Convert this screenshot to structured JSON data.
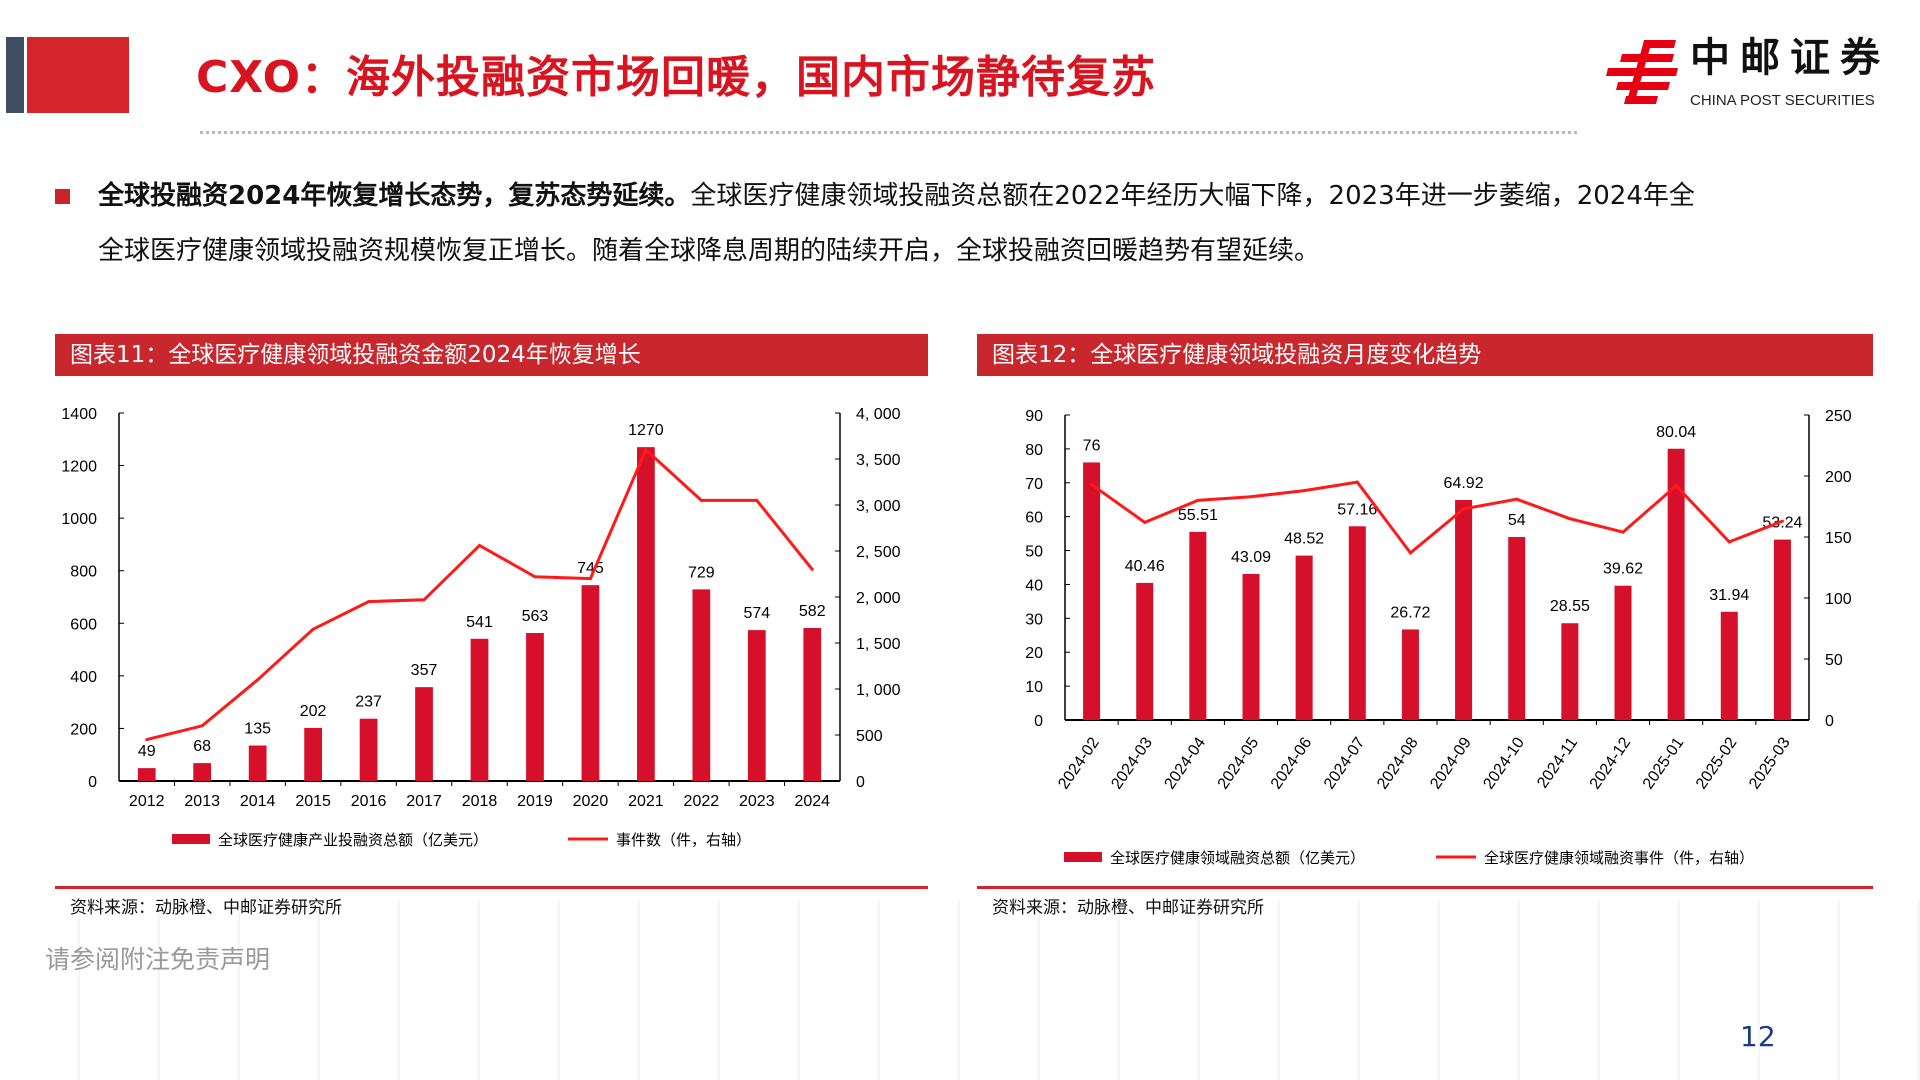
{
  "header": {
    "title": "CXO：海外投融资市场回暖，国内市场静待复苏",
    "logo_cn": "中邮证券",
    "logo_en": "CHINA POST SECURITIES"
  },
  "body": {
    "bold": "全球投融资2024年恢复增长态势，复苏态势延续。",
    "line1_rest": "全球医疗健康领域投融资总额在2022年经历大幅下降，2023年进一步萎缩，2024年全",
    "line2": "全球医疗健康领域投融资规模恢复正增长。随着全球降息周期的陆续开启，全球投融资回暖趋势有望延续。"
  },
  "charts": [
    {
      "header": "图表11：全球医疗健康领域投融资金额2024年恢复增长",
      "source": "资料来源：动脉橙、中邮证券研究所"
    },
    {
      "header": "图表12：全球医疗健康领域投融资月度变化趋势",
      "source": "资料来源：动脉橙、中邮证券研究所"
    }
  ],
  "footer": {
    "disclaimer": "请参阅附注免责声明",
    "page": "12"
  },
  "colors": {
    "bar": "#d6102a",
    "line": "#ff1a1a",
    "accent": "#d3252b"
  },
  "chart_data": [
    {
      "type": "bar+line",
      "categories": [
        "2012",
        "2013",
        "2014",
        "2015",
        "2016",
        "2017",
        "2018",
        "2019",
        "2020",
        "2021",
        "2022",
        "2023",
        "2024"
      ],
      "series": [
        {
          "name": "全球医疗健康产业投融资总额（亿美元）",
          "type": "bar",
          "axis": "left",
          "values": [
            49,
            68,
            135,
            202,
            237,
            357,
            541,
            563,
            745,
            1270,
            729,
            574,
            582
          ]
        },
        {
          "name": "事件数（件，右轴）",
          "type": "line",
          "axis": "right",
          "values": [
            450,
            600,
            1100,
            1650,
            1950,
            1970,
            2560,
            2220,
            2200,
            3600,
            3050,
            3050,
            2300
          ]
        }
      ],
      "ylim": [
        0,
        1400
      ],
      "yticks": [
        "0",
        "200",
        "400",
        "600",
        "800",
        "1000",
        "1200",
        "1400"
      ],
      "y2lim": [
        0,
        4000
      ],
      "y2ticks": [
        "0",
        "500",
        "1, 000",
        "1, 500",
        "2, 000",
        "2, 500",
        "3, 000",
        "3, 500",
        "4, 000"
      ],
      "legend": "bottom"
    },
    {
      "type": "bar+line",
      "categories": [
        "2024-02",
        "2024-03",
        "2024-04",
        "2024-05",
        "2024-06",
        "2024-07",
        "2024-08",
        "2024-09",
        "2024-10",
        "2024-11",
        "2024-12",
        "2025-01",
        "2025-02",
        "2025-03"
      ],
      "series": [
        {
          "name": "全球医疗健康领域融资总额（亿美元）",
          "type": "bar",
          "axis": "left",
          "values": [
            76,
            40.46,
            55.51,
            43.09,
            48.52,
            57.16,
            26.72,
            64.92,
            54,
            28.55,
            39.62,
            80.04,
            31.94,
            53.24
          ],
          "labels": [
            "76",
            "40.46",
            "55.51",
            "43.09",
            "48.52",
            "57.16",
            "26.72",
            "64.92",
            "54",
            "28.55",
            "39.62",
            "80.04",
            "31.94",
            "53.24"
          ]
        },
        {
          "name": "全球医疗健康领域融资事件（件，右轴）",
          "type": "line",
          "axis": "right",
          "values": [
            193,
            162,
            180,
            183,
            188,
            195,
            137,
            173,
            181,
            165,
            154,
            192,
            146,
            163
          ]
        }
      ],
      "ylim": [
        0,
        90
      ],
      "yticks": [
        "0",
        "10",
        "20",
        "30",
        "40",
        "50",
        "60",
        "70",
        "80",
        "90"
      ],
      "y2lim": [
        0,
        250
      ],
      "y2ticks": [
        "0",
        "50",
        "100",
        "150",
        "200",
        "250"
      ],
      "legend": "bottom"
    }
  ]
}
